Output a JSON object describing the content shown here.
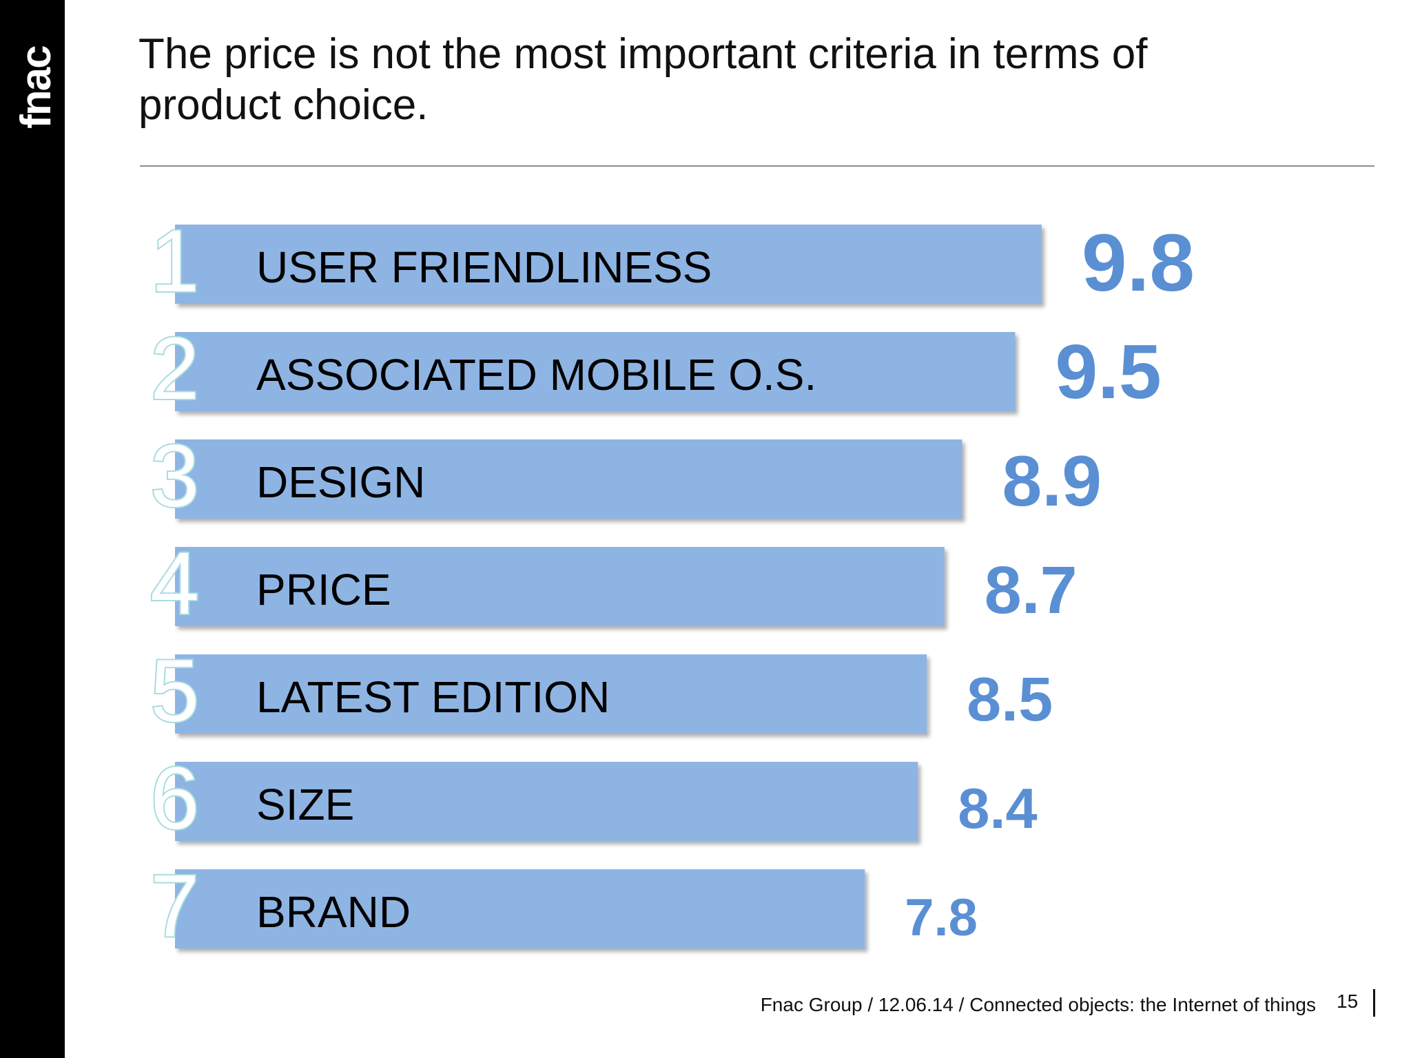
{
  "logo": "fnac",
  "title": "The price is not the most important criteria in terms of product choice.",
  "footer": "Fnac Group / 12.06.14 / Connected objects: the Internet of things",
  "page_number": "15",
  "colors": {
    "bar": "#8eb4e3",
    "value": "#5a8fd4",
    "sidebar": "#000000"
  },
  "chart_data": {
    "type": "bar",
    "orientation": "horizontal",
    "categories": [
      "USER FRIENDLINESS",
      "ASSOCIATED MOBILE O.S.",
      "DESIGN",
      "PRICE",
      "LATEST EDITION",
      "SIZE",
      "BRAND"
    ],
    "ranks": [
      "1",
      "2",
      "3",
      "4",
      "5",
      "6",
      "7"
    ],
    "values": [
      9.8,
      9.5,
      8.9,
      8.7,
      8.5,
      8.4,
      7.8
    ],
    "value_labels": [
      "9.8",
      "9.5",
      "8.9",
      "8.7",
      "8.5",
      "8.4",
      "7.8"
    ],
    "xlim": [
      0,
      10
    ],
    "grid": false,
    "legend": "none"
  }
}
